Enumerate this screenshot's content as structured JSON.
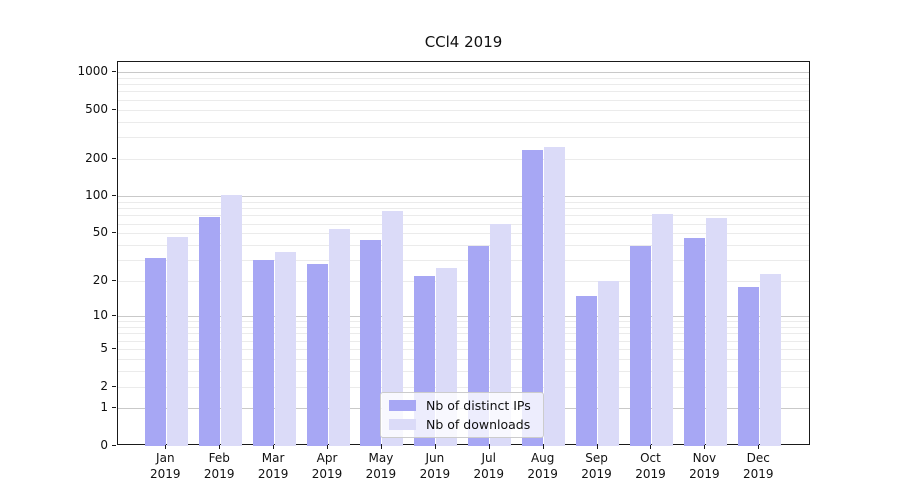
{
  "chart_data": {
    "type": "bar",
    "title": "CCl4 2019",
    "categories": [
      "Jan",
      "Feb",
      "Mar",
      "Apr",
      "May",
      "Jun",
      "Jul",
      "Aug",
      "Sep",
      "Oct",
      "Nov",
      "Dec"
    ],
    "x_year_label": "2019",
    "series": [
      {
        "name": "Nb of distinct IPs",
        "color": "#a7a7f4",
        "values": [
          31,
          68,
          30,
          28,
          44,
          22,
          39,
          237,
          15,
          39,
          46,
          18
        ]
      },
      {
        "name": "Nb of downloads",
        "color": "#dbdbf8",
        "values": [
          47,
          103,
          35,
          54,
          76,
          26,
          60,
          251,
          20,
          72,
          66,
          23
        ]
      }
    ],
    "xlabel": "",
    "ylabel": "",
    "yscale": "log1p",
    "ylim": [
      0,
      1200
    ],
    "y_ticks": [
      0,
      1,
      2,
      5,
      10,
      20,
      50,
      100,
      200,
      500,
      1000
    ],
    "grid": {
      "on": true,
      "major_lines": [
        1,
        10,
        100,
        1000
      ],
      "minor_lines": [
        2,
        3,
        4,
        5,
        6,
        7,
        8,
        9,
        20,
        30,
        40,
        50,
        60,
        70,
        80,
        90,
        200,
        300,
        400,
        500,
        600,
        700,
        800,
        900
      ]
    },
    "legend": {
      "position": "lower-center",
      "entries": [
        "Nb of distinct IPs",
        "Nb of downloads"
      ]
    },
    "colors": {
      "bar_dark": "#a7a7f4",
      "bar_light": "#dbdbf8",
      "axis": "#1a1a1a",
      "grid_major": "#c9c9c9",
      "grid_minor": "#ebebeb"
    }
  }
}
